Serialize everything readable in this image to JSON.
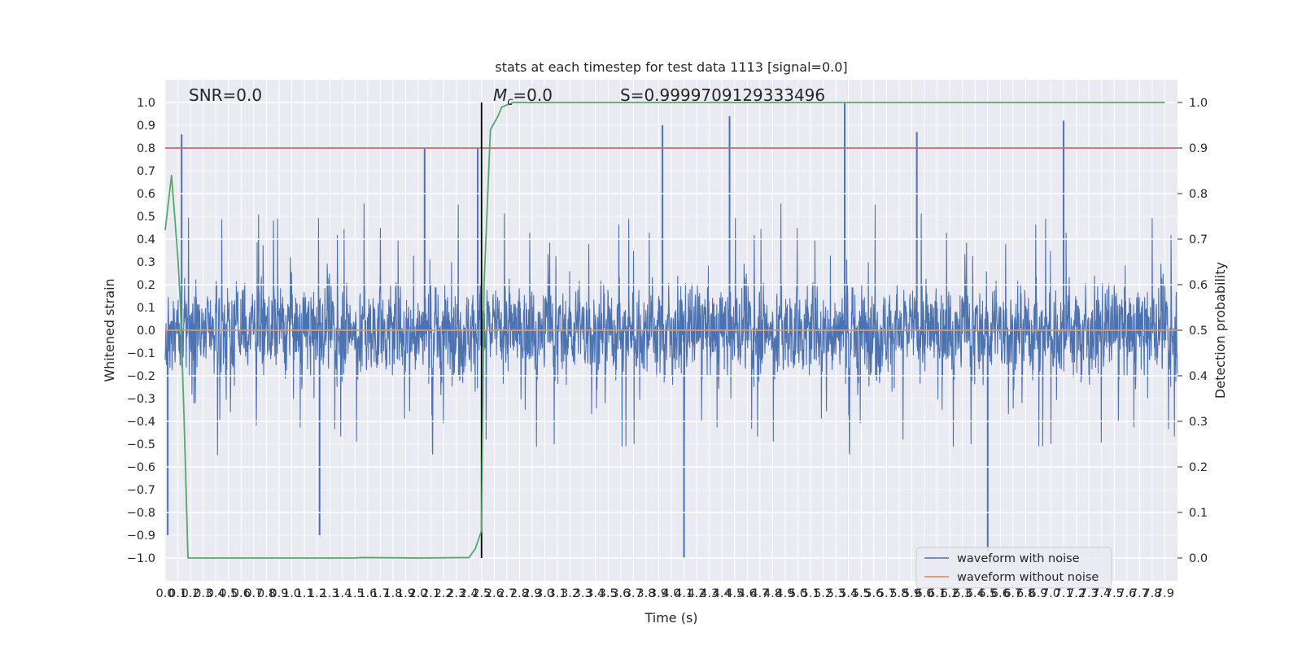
{
  "chart_data": {
    "type": "line",
    "title": "stats at each timestep for test data 1113 [signal=0.0]",
    "xlabel": "Time (s)",
    "ylabel": "Whitened strain",
    "y2label": "Detection probability",
    "xlim": [
      0.0,
      8.0
    ],
    "ylim": [
      -1.1,
      1.1
    ],
    "y2lim": [
      -0.05,
      1.05
    ],
    "grid": true,
    "legend_placement": "lower right",
    "x_tick_labels": [
      "0.0",
      "0.1",
      "0.2",
      "0.3",
      "0.4",
      "0.5",
      "0.6",
      "0.7",
      "0.8",
      "0.9",
      "1.0",
      "1.1",
      "1.2",
      "1.3",
      "1.4",
      "1.5",
      "1.6",
      "1.7",
      "1.8",
      "1.9",
      "2.0",
      "2.1",
      "2.2",
      "2.3",
      "2.4",
      "2.5",
      "2.6",
      "2.7",
      "2.8",
      "2.9",
      "3.0",
      "3.1",
      "3.2",
      "3.3",
      "3.4",
      "3.5",
      "3.6",
      "3.7",
      "3.8",
      "3.9",
      "4.0",
      "4.1",
      "4.2",
      "4.3",
      "4.4",
      "4.5",
      "4.6",
      "4.7",
      "4.8",
      "4.9",
      "5.0",
      "5.1",
      "5.2",
      "5.3",
      "5.4",
      "5.5",
      "5.6",
      "5.7",
      "5.8",
      "5.9",
      "6.0",
      "6.1",
      "6.2",
      "6.3",
      "6.4",
      "6.5",
      "6.6",
      "6.7",
      "6.8",
      "6.9",
      "7.0",
      "7.1",
      "7.2",
      "7.3",
      "7.4",
      "7.5",
      "7.6",
      "7.7",
      "7.8",
      "7.9"
    ],
    "y_tick_labels": [
      "1.0",
      "0.9",
      "0.8",
      "0.7",
      "0.6",
      "0.5",
      "0.4",
      "0.3",
      "0.2",
      "0.1",
      "0.0",
      "−0.1",
      "−0.2",
      "−0.3",
      "−0.4",
      "−0.5",
      "−0.6",
      "−0.7",
      "−0.8",
      "−0.9",
      "−1.0"
    ],
    "y2_tick_labels": [
      "1.0",
      "0.9",
      "0.8",
      "0.7",
      "0.6",
      "0.5",
      "0.4",
      "0.3",
      "0.2",
      "0.1",
      "0.0"
    ],
    "annotations": {
      "snr": "SNR=0.0",
      "mc_prefix": "M",
      "mc_sub": "c",
      "mc_value": "=0.0",
      "score": "S=0.9999709129333496"
    },
    "threshold_y2": 0.9,
    "marker_x": 2.5,
    "series": [
      {
        "name": "waveform with noise",
        "color": "#4c72b0",
        "envelope_typical": 0.36,
        "peak_max": 1.0,
        "peak_min": -1.0
      },
      {
        "name": "waveform without noise",
        "color": "#dd8452",
        "values_constant": 0.0
      },
      {
        "color": "#55a868",
        "axis": "y2",
        "x": [
          0.0,
          0.05,
          0.1,
          0.12,
          0.15,
          0.18,
          0.2,
          0.22,
          0.25,
          0.3,
          0.4,
          0.6,
          1.0,
          1.5,
          1.55,
          2.0,
          2.4,
          2.45,
          2.5,
          2.52,
          2.57,
          2.63,
          2.66,
          2.75,
          3.0,
          4.0,
          5.0,
          6.0,
          7.0,
          7.9
        ],
        "values": [
          0.72,
          0.84,
          0.66,
          0.56,
          0.3,
          0.0,
          0.0,
          0.0,
          0.0,
          0.0,
          0.0,
          0.0,
          0.0,
          0.0,
          0.001,
          0.0,
          0.001,
          0.02,
          0.06,
          0.6,
          0.94,
          0.97,
          0.99,
          1.0,
          1.0,
          1.0,
          1.0,
          1.0,
          1.0,
          1.0
        ]
      }
    ]
  }
}
